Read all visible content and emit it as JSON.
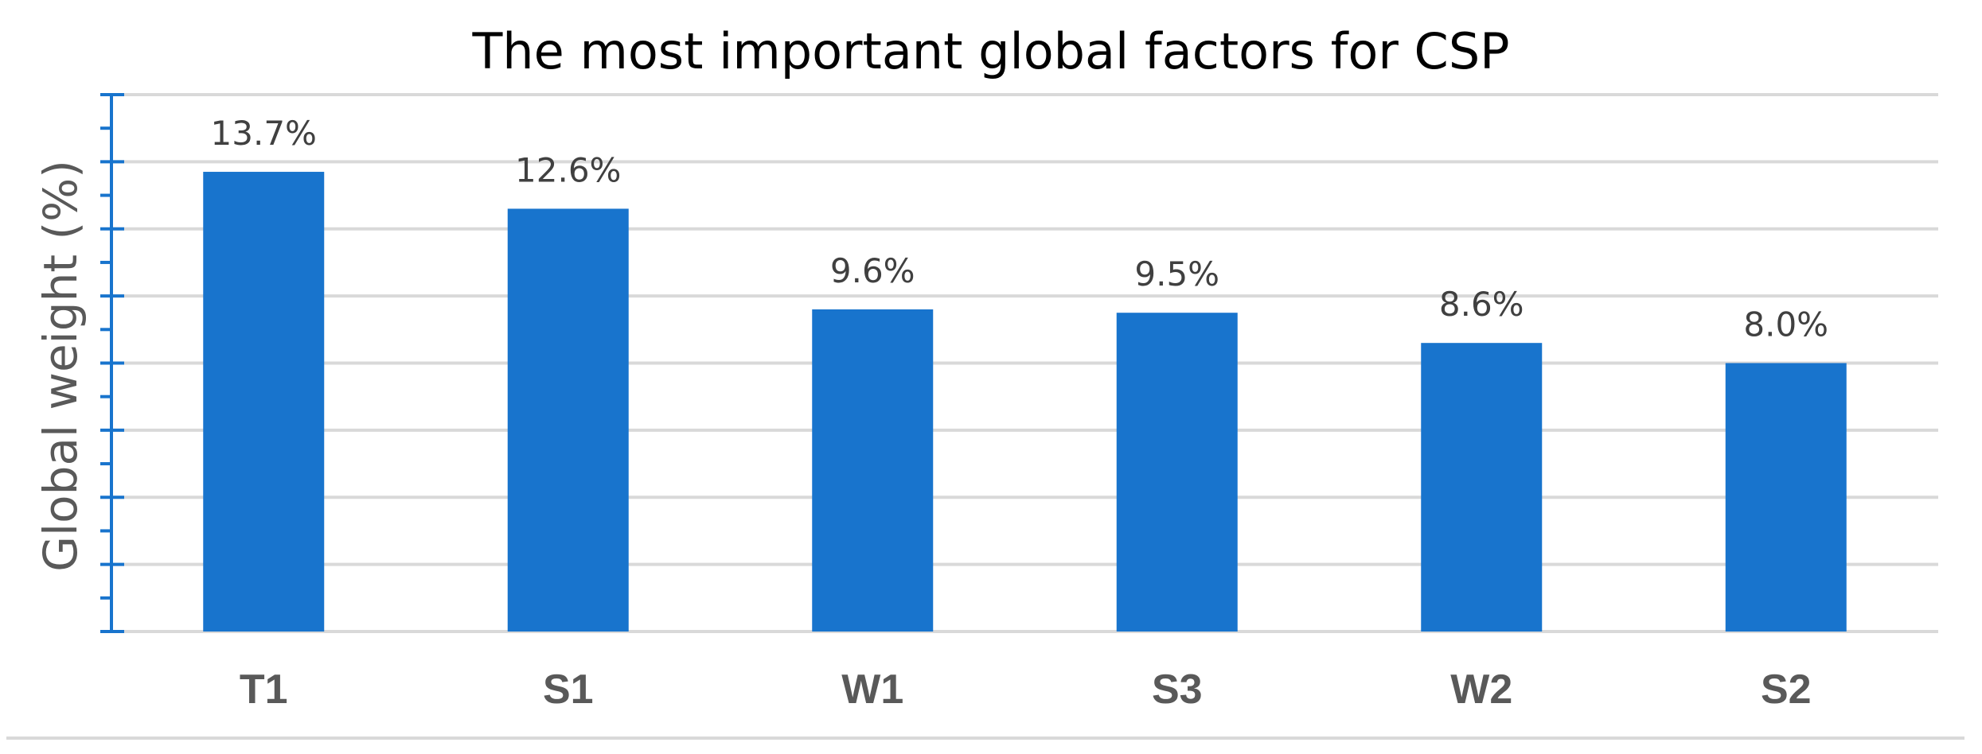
{
  "chart_data": {
    "type": "bar",
    "title": "The most important global factors for CSP",
    "xlabel": "",
    "ylabel": "Global weight (%)",
    "categories": [
      "T1",
      "S1",
      "W1",
      "S3",
      "W2",
      "S2"
    ],
    "values": [
      13.7,
      12.6,
      9.6,
      9.5,
      8.6,
      8.0
    ],
    "data_labels": [
      "13.7%",
      "12.6%",
      "9.6%",
      "9.5%",
      "8.6%",
      "8.0%"
    ],
    "ylim": [
      0,
      16
    ],
    "y_major_step": 2,
    "y_minor_step": 1,
    "y_tick_labels_shown": false,
    "grid": true,
    "legend": "none",
    "colors": {
      "bar": "#1874CD",
      "axis": "#1874CD",
      "grid": "#D9D9D9"
    }
  }
}
